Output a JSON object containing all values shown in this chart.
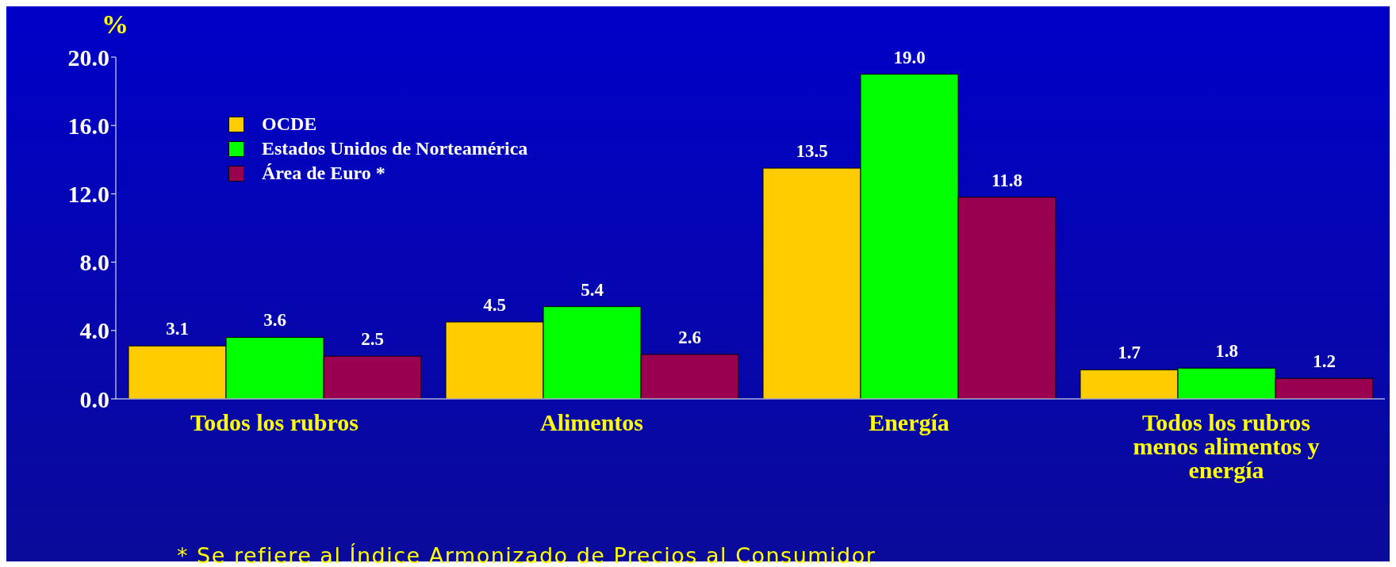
{
  "chart_data": {
    "type": "bar",
    "ylabel": "%",
    "categories": [
      "Todos los rubros",
      "Alimentos",
      "Energía",
      "Todos los rubros menos alimentos y energía"
    ],
    "series": [
      {
        "name": "OCDE",
        "color": "#ffcc00",
        "values": [
          3.1,
          4.5,
          13.5,
          1.7
        ],
        "value_labels": [
          "3.1",
          "4.5",
          "13.5",
          "1.7"
        ]
      },
      {
        "name": "Estados Unidos de Norteamérica",
        "color": "#00ff00",
        "values": [
          3.6,
          5.4,
          19.0,
          1.8
        ],
        "value_labels": [
          "3.6",
          "5.4",
          "19.0",
          "1.8"
        ]
      },
      {
        "name": "Área de Euro *",
        "color": "#990050",
        "values": [
          2.5,
          2.6,
          11.8,
          1.2
        ],
        "value_labels": [
          "2.5",
          "2.6",
          "11.8",
          "1.2"
        ]
      }
    ],
    "ylim": [
      0,
      20
    ],
    "yticks": [
      {
        "value": 0,
        "label": "0.0"
      },
      {
        "value": 4,
        "label": "4.0"
      },
      {
        "value": 8,
        "label": "8.0"
      },
      {
        "value": 12,
        "label": "12.0"
      },
      {
        "value": 16,
        "label": "16.0"
      },
      {
        "value": 20,
        "label": "20.0"
      }
    ],
    "grid": false,
    "legend": "top left",
    "annotations": [
      "* Se refiere al Índice Armonizado de Precios al Consumidor"
    ]
  }
}
